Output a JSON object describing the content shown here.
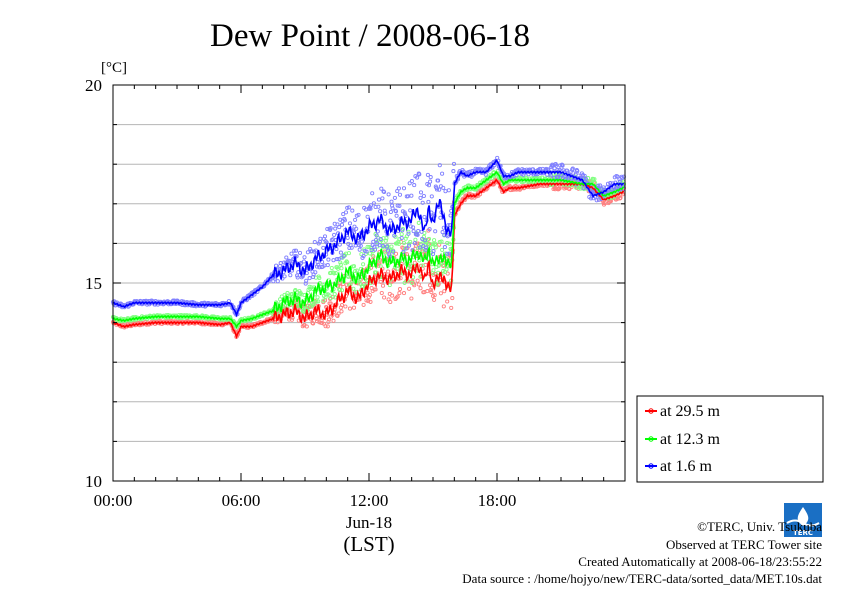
{
  "chart_data": {
    "type": "line",
    "title": "Dew Point / 2008-06-18",
    "ylabel": "[°C]",
    "xlabel": "(LST)",
    "date_label": "Jun-18",
    "xlim": [
      0,
      24
    ],
    "ylim": [
      10,
      20
    ],
    "x_ticks": [
      0,
      6,
      12,
      18
    ],
    "x_tick_labels": [
      "00:00",
      "06:00",
      "12:00",
      "18:00"
    ],
    "y_ticks": [
      10,
      15,
      20
    ],
    "y_tick_labels": [
      "10",
      "15",
      "20"
    ],
    "y_gridlines": [
      11,
      12,
      13,
      14,
      15,
      16,
      17,
      18,
      19
    ],
    "grid": true,
    "legend_position": "bottom-right, outside plot",
    "series": [
      {
        "name": "at 29.5 m",
        "color": "#ff0000",
        "x": [
          0,
          0.5,
          1,
          2,
          3,
          4,
          5,
          5.5,
          5.8,
          6,
          6.5,
          7,
          7.5,
          8,
          8.5,
          9,
          9.5,
          10,
          10.5,
          11,
          11.5,
          12,
          12.5,
          13,
          13.5,
          14,
          14.3,
          14.6,
          14.8,
          15,
          15.3,
          15.6,
          15.9,
          16,
          16.3,
          16.6,
          17,
          17.5,
          18,
          18.3,
          18.6,
          19,
          20,
          21,
          22,
          22.5,
          23,
          23.5,
          23.9
        ],
        "y": [
          14,
          13.9,
          13.95,
          14.0,
          14.0,
          14.0,
          13.95,
          14.0,
          13.65,
          13.9,
          13.9,
          14.0,
          14.1,
          14.2,
          14.3,
          14.1,
          14.3,
          14.2,
          14.5,
          14.8,
          14.6,
          15.0,
          15.2,
          15.1,
          15.3,
          15.2,
          15.5,
          15.0,
          15.6,
          14.8,
          15.3,
          14.9,
          15.0,
          16.7,
          17.0,
          17.2,
          17.2,
          17.4,
          17.6,
          17.3,
          17.4,
          17.4,
          17.5,
          17.5,
          17.5,
          17.4,
          17.1,
          17.2,
          17.3
        ]
      },
      {
        "name": "at 12.3 m",
        "color": "#00ff00",
        "x": [
          0,
          0.5,
          1,
          2,
          3,
          4,
          5,
          5.5,
          5.8,
          6,
          6.5,
          7,
          7.5,
          8,
          8.5,
          9,
          9.5,
          10,
          10.5,
          11,
          11.5,
          12,
          12.5,
          13,
          13.5,
          14,
          14.3,
          14.6,
          14.8,
          15,
          15.3,
          15.6,
          15.9,
          16,
          16.3,
          16.6,
          17,
          17.5,
          18,
          18.3,
          18.6,
          19,
          20,
          21,
          22,
          22.5,
          23,
          23.5,
          23.9
        ],
        "y": [
          14.1,
          14.05,
          14.1,
          14.15,
          14.15,
          14.15,
          14.1,
          14.1,
          13.9,
          14.05,
          14.1,
          14.2,
          14.3,
          14.5,
          14.6,
          14.5,
          14.8,
          14.9,
          15.0,
          15.3,
          15.1,
          15.4,
          15.7,
          15.5,
          15.6,
          15.6,
          15.8,
          15.5,
          15.9,
          15.4,
          15.7,
          15.5,
          15.6,
          17.0,
          17.3,
          17.4,
          17.4,
          17.6,
          17.8,
          17.5,
          17.6,
          17.6,
          17.6,
          17.6,
          17.5,
          17.5,
          17.2,
          17.3,
          17.4
        ]
      },
      {
        "name": "at 1.6 m",
        "color": "#0000ff",
        "x": [
          0,
          0.5,
          1,
          2,
          3,
          4,
          5,
          5.5,
          5.8,
          6,
          6.5,
          7,
          7.5,
          8,
          8.5,
          9,
          9.5,
          10,
          10.5,
          11,
          11.5,
          12,
          12.5,
          13,
          13.5,
          14,
          14.3,
          14.6,
          14.8,
          15,
          15.3,
          15.6,
          15.9,
          16,
          16.3,
          16.6,
          17,
          17.5,
          18,
          18.3,
          18.6,
          19,
          20,
          21,
          22,
          22.5,
          23,
          23.5,
          23.9
        ],
        "y": [
          14.5,
          14.4,
          14.5,
          14.5,
          14.5,
          14.45,
          14.45,
          14.5,
          14.2,
          14.5,
          14.7,
          14.9,
          15.2,
          15.3,
          15.5,
          15.3,
          15.6,
          15.8,
          16.0,
          16.3,
          16.1,
          16.4,
          16.6,
          16.3,
          16.5,
          16.6,
          16.9,
          16.2,
          17.0,
          16.4,
          17.2,
          16.3,
          16.4,
          17.5,
          17.8,
          17.7,
          17.8,
          17.8,
          18.1,
          17.7,
          17.7,
          17.8,
          17.8,
          17.8,
          17.6,
          17.2,
          17.3,
          17.5,
          17.5
        ]
      }
    ]
  },
  "credits": {
    "copyright": "©TERC, Univ. Tsukuba",
    "observed": "Observed at TERC Tower site",
    "created": "Created Automatically at 2008-06-18/23:55:22",
    "source": "Data source : /home/hojyo/new/TERC-data/sorted_data/MET.10s.dat",
    "logo_text": "TERC",
    "logo_color": "#1a6fc4"
  }
}
